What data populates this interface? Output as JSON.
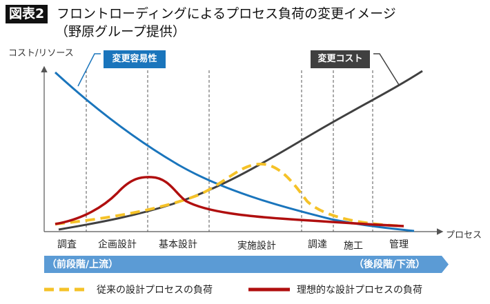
{
  "header": {
    "badge": "図表2",
    "title": "フロントローディングによるプロセス負荷の変更イメージ",
    "source": "（野原グループ提供）"
  },
  "axes": {
    "y_label": "コスト/リソース",
    "x_label": "プロセス"
  },
  "callouts": {
    "ease_of_change": "変更容易性",
    "change_cost": "変更コスト"
  },
  "phases": [
    "調査",
    "企画設計",
    "基本設計",
    "実施設計",
    "調達",
    "施工",
    "管理"
  ],
  "flow_bar": {
    "start": "（前段階/上流）",
    "end": "（後段階/下流）",
    "color": "#5b9bd5"
  },
  "legend": [
    {
      "label": "従来の設計プロセスの負荷",
      "color": "#f5c228",
      "style": "dashed"
    },
    {
      "label": "理想的な設計プロセスの負荷",
      "color": "#b00f0f",
      "style": "solid"
    }
  ],
  "colors": {
    "ease_of_change": "#1a75bc",
    "change_cost": "#404040"
  }
}
